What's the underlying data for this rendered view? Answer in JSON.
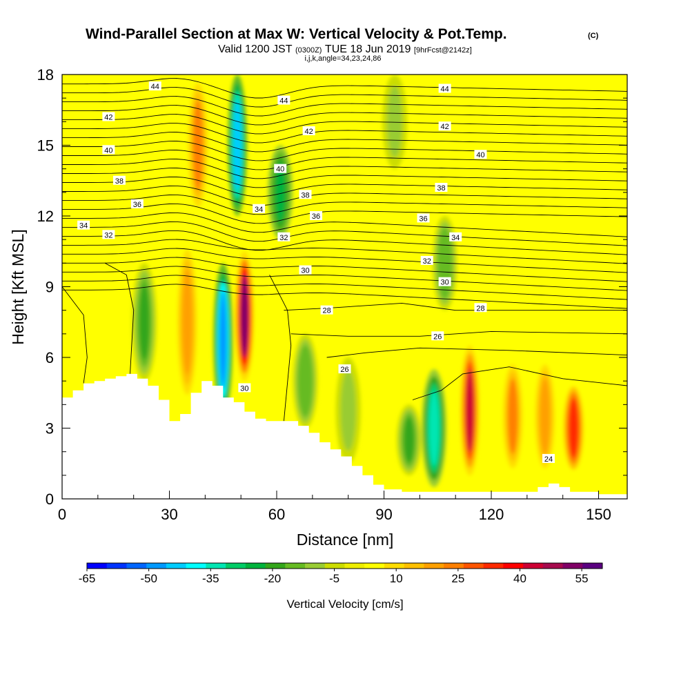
{
  "chart_data": {
    "type": "heatmap",
    "title": "Wind-Parallel Section at Max W: Vertical Velocity & Pot.Temp.",
    "title_mark": "(C)",
    "subtitle": {
      "valid": "Valid 1200 JST",
      "zulu": "(0300Z)",
      "date": "TUE 18 Jun 2019",
      "forecast": "[9hrFcst@2142z]"
    },
    "info": "i,j,k,angle=34,23,24,86",
    "xlabel": "Distance [nm]",
    "ylabel": "Height [Kft MSL]",
    "xlim": [
      0,
      158
    ],
    "ylim": [
      0,
      18
    ],
    "xticks": [
      0,
      30,
      60,
      90,
      120,
      150
    ],
    "yticks": [
      0,
      3,
      6,
      9,
      12,
      15,
      18
    ],
    "grid": false,
    "colorbar": {
      "title": "Vertical Velocity [cm/s]",
      "tick_labels": [
        "-65",
        "-50",
        "-35",
        "-20",
        "-5",
        "10",
        "25",
        "40",
        "55"
      ],
      "tick_values": [
        -65,
        -50,
        -35,
        -20,
        -5,
        10,
        25,
        40,
        55
      ],
      "bins": [
        -65,
        -60,
        -55,
        -50,
        -45,
        -40,
        -35,
        -30,
        -25,
        -20,
        -15,
        -10,
        -5,
        0,
        5,
        10,
        15,
        20,
        25,
        30,
        35,
        40,
        45,
        50,
        55,
        60
      ],
      "colors": [
        "#0000ff",
        "#0033ff",
        "#0066ff",
        "#0099ff",
        "#00ccff",
        "#00ffff",
        "#00e6b3",
        "#00cc66",
        "#00b33c",
        "#33a61a",
        "#66bb22",
        "#99cc33",
        "#ccdd00",
        "#eeee00",
        "#ffff00",
        "#ffdd00",
        "#ffc000",
        "#ffa000",
        "#ff8000",
        "#ff5500",
        "#ff2a00",
        "#ff0000",
        "#cc0033",
        "#a60a4d",
        "#800066",
        "#5a0080"
      ]
    },
    "series": [
      {
        "name": "Vertical Velocity",
        "units": "cm/s",
        "features": [
          {
            "x": 45,
            "z_top": 10,
            "z_bottom": 3.5,
            "peak": -50
          },
          {
            "x": 51,
            "z_top": 10.5,
            "z_bottom": 5,
            "peak": 55
          },
          {
            "x": 49,
            "z_top": 18,
            "z_bottom": 12,
            "peak": -45
          },
          {
            "x": 61,
            "z_top": 15,
            "z_bottom": 11,
            "peak": -25
          },
          {
            "x": 38,
            "z_top": 18,
            "z_bottom": 12,
            "peak": 25
          },
          {
            "x": 23,
            "z_top": 10,
            "z_bottom": 5,
            "peak": -20
          },
          {
            "x": 35,
            "z_top": 11,
            "z_bottom": 4,
            "peak": 20
          },
          {
            "x": 104,
            "z_top": 5.5,
            "z_bottom": 0.5,
            "peak": -35
          },
          {
            "x": 97,
            "z_top": 4,
            "z_bottom": 1,
            "peak": -20
          },
          {
            "x": 114,
            "z_top": 6.5,
            "z_bottom": 1,
            "peak": 45
          },
          {
            "x": 126,
            "z_top": 6,
            "z_bottom": 1,
            "peak": 25
          },
          {
            "x": 135,
            "z_top": 6,
            "z_bottom": 1,
            "peak": 20
          },
          {
            "x": 143,
            "z_top": 5,
            "z_bottom": 1,
            "peak": 35
          },
          {
            "x": 80,
            "z_top": 6,
            "z_bottom": 1.5,
            "peak": -10
          },
          {
            "x": 68,
            "z_top": 7,
            "z_bottom": 3,
            "peak": -15
          },
          {
            "x": 107,
            "z_top": 12,
            "z_bottom": 8,
            "peak": -15
          },
          {
            "x": 93,
            "z_top": 18,
            "z_bottom": 14,
            "peak": -10
          }
        ]
      },
      {
        "name": "Pot.Temp.",
        "contour_labels": [
          {
            "text": "44",
            "x": 26,
            "z": 17.5
          },
          {
            "text": "44",
            "x": 62,
            "z": 16.9
          },
          {
            "text": "44",
            "x": 107,
            "z": 17.4
          },
          {
            "text": "42",
            "x": 13,
            "z": 16.2
          },
          {
            "text": "42",
            "x": 69,
            "z": 15.6
          },
          {
            "text": "42",
            "x": 107,
            "z": 15.8
          },
          {
            "text": "40",
            "x": 13,
            "z": 14.8
          },
          {
            "text": "40",
            "x": 61,
            "z": 14.0
          },
          {
            "text": "40",
            "x": 117,
            "z": 14.6
          },
          {
            "text": "38",
            "x": 16,
            "z": 13.5
          },
          {
            "text": "38",
            "x": 68,
            "z": 12.9
          },
          {
            "text": "38",
            "x": 106,
            "z": 13.2
          },
          {
            "text": "36",
            "x": 21,
            "z": 12.5
          },
          {
            "text": "36",
            "x": 71,
            "z": 12.0
          },
          {
            "text": "36",
            "x": 101,
            "z": 11.9
          },
          {
            "text": "34",
            "x": 6,
            "z": 11.6
          },
          {
            "text": "34",
            "x": 55,
            "z": 12.3
          },
          {
            "text": "34",
            "x": 110,
            "z": 11.1
          },
          {
            "text": "32",
            "x": 13,
            "z": 11.2
          },
          {
            "text": "32",
            "x": 62,
            "z": 11.1
          },
          {
            "text": "32",
            "x": 102,
            "z": 10.1
          },
          {
            "text": "30",
            "x": 68,
            "z": 9.7
          },
          {
            "text": "30",
            "x": 107,
            "z": 9.2
          },
          {
            "text": "30",
            "x": 51,
            "z": 4.7
          },
          {
            "text": "28",
            "x": 74,
            "z": 8.0
          },
          {
            "text": "28",
            "x": 117,
            "z": 8.1
          },
          {
            "text": "26",
            "x": 105,
            "z": 6.9
          },
          {
            "text": "26",
            "x": 79,
            "z": 5.5
          },
          {
            "text": "24",
            "x": 136,
            "z": 1.7
          }
        ]
      }
    ],
    "terrain_height": [
      [
        0,
        4.3
      ],
      [
        3,
        4.6
      ],
      [
        6,
        4.9
      ],
      [
        9,
        5.0
      ],
      [
        12,
        5.1
      ],
      [
        15,
        5.2
      ],
      [
        18,
        5.3
      ],
      [
        21,
        5.1
      ],
      [
        24,
        4.8
      ],
      [
        27,
        4.2
      ],
      [
        30,
        3.3
      ],
      [
        33,
        3.6
      ],
      [
        36,
        4.5
      ],
      [
        39,
        5.0
      ],
      [
        42,
        4.8
      ],
      [
        45,
        4.3
      ],
      [
        48,
        4.1
      ],
      [
        51,
        3.7
      ],
      [
        54,
        3.4
      ],
      [
        57,
        3.3
      ],
      [
        60,
        3.3
      ],
      [
        63,
        3.3
      ],
      [
        66,
        3.1
      ],
      [
        69,
        2.8
      ],
      [
        72,
        2.4
      ],
      [
        75,
        2.1
      ],
      [
        78,
        1.8
      ],
      [
        81,
        1.4
      ],
      [
        84,
        1.0
      ],
      [
        87,
        0.6
      ],
      [
        90,
        0.4
      ],
      [
        95,
        0.3
      ],
      [
        100,
        0.3
      ],
      [
        110,
        0.3
      ],
      [
        120,
        0.3
      ],
      [
        130,
        0.3
      ],
      [
        133,
        0.5
      ],
      [
        136,
        0.65
      ],
      [
        139,
        0.5
      ],
      [
        142,
        0.3
      ],
      [
        150,
        0.2
      ],
      [
        158,
        0.2
      ]
    ]
  }
}
